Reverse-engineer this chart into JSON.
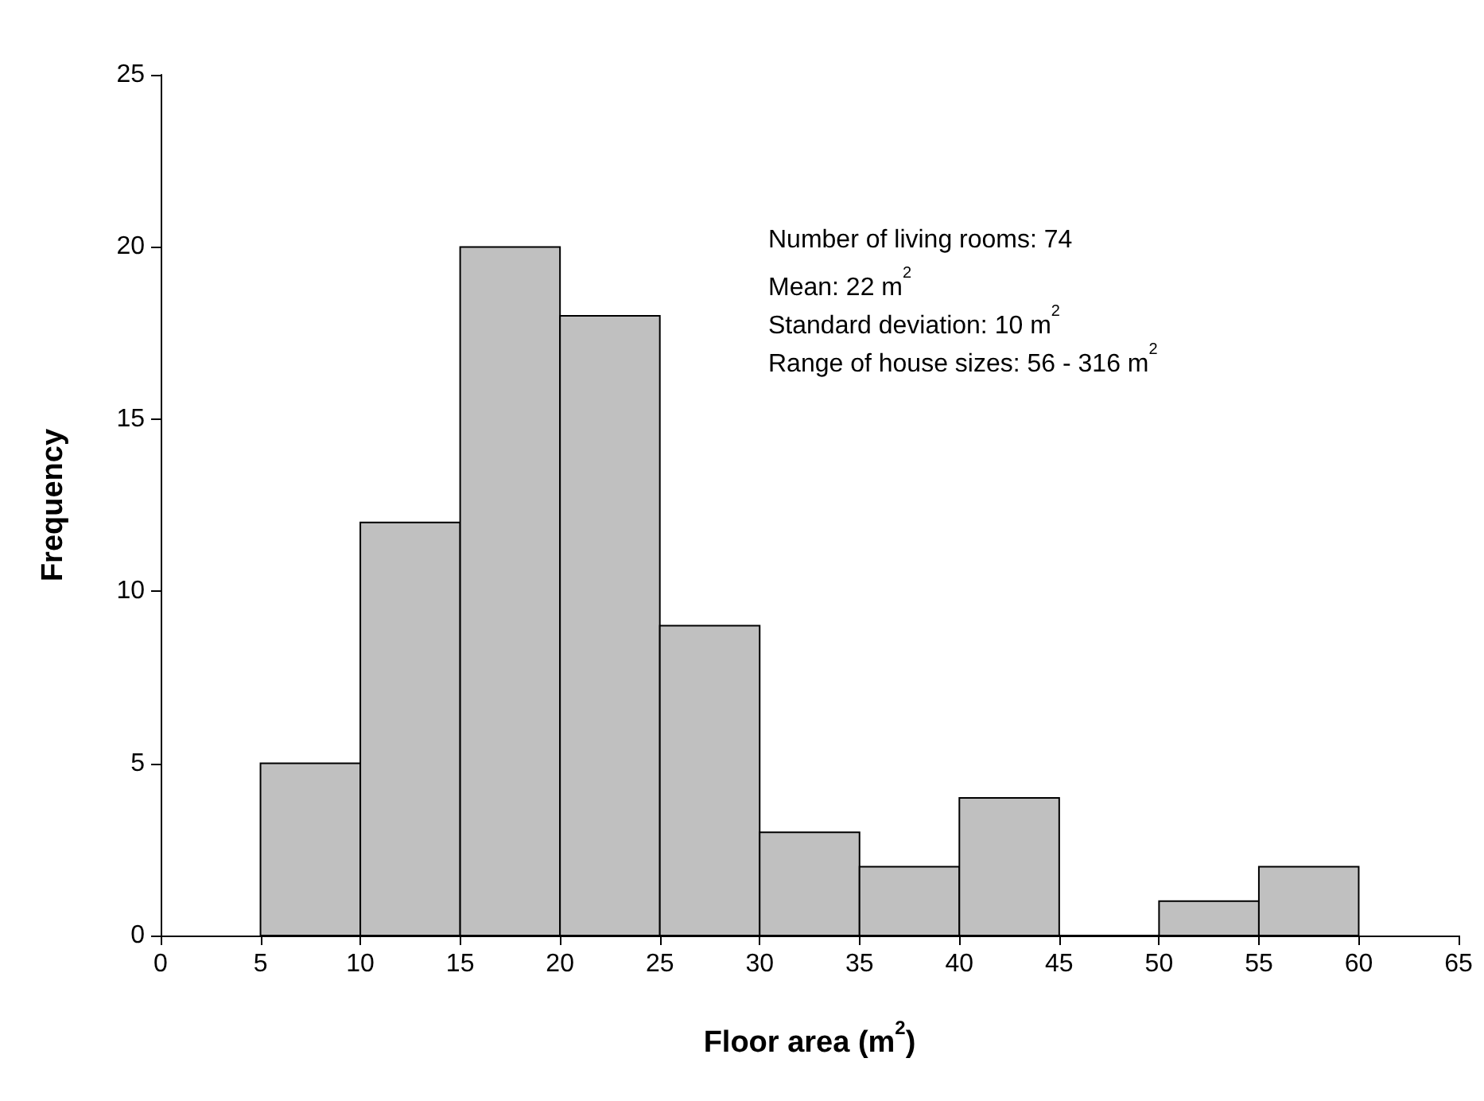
{
  "chart_data": {
    "type": "histogram",
    "xlabel": "Floor area (m$^{2}$)",
    "ylabel": "Frequency",
    "bins": [
      5,
      10,
      15,
      20,
      25,
      30,
      35,
      40,
      45,
      50,
      55,
      60
    ],
    "values": [
      5,
      12,
      20,
      18,
      9,
      3,
      2,
      4,
      0,
      1,
      2
    ],
    "color": "#c0c0c0",
    "xlim": [
      0,
      65
    ],
    "xticks": [
      0,
      5,
      10,
      15,
      20,
      25,
      30,
      35,
      40,
      45,
      50,
      55,
      60,
      65
    ],
    "ylim": [
      0,
      25
    ],
    "yticks": [
      0,
      5,
      10,
      15,
      20,
      25
    ],
    "grid": false,
    "legend": false,
    "annotations": [
      "Number of living rooms: 74",
      "Mean: 22 m$^{2}$",
      "Standard deviation: 10 m$^{2}$",
      "Range of house sizes: 56 - 316 m$^{2}$"
    ]
  }
}
